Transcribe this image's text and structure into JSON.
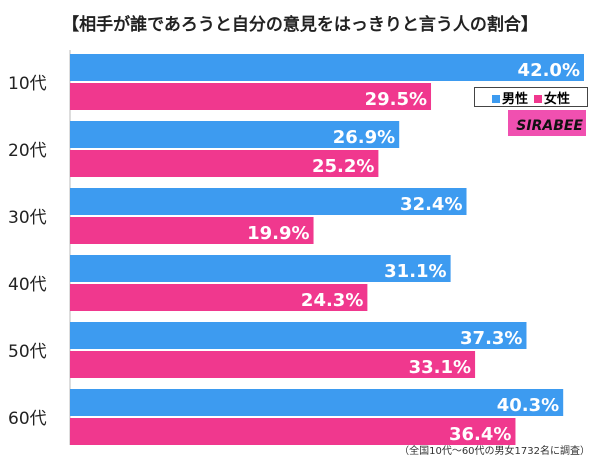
{
  "chart_data": {
    "type": "bar",
    "orientation": "horizontal",
    "title": "【相手が誰であろうと自分の意見をはっきりと言う人の割合】",
    "categories": [
      "10代",
      "20代",
      "30代",
      "40代",
      "50代",
      "60代"
    ],
    "series": [
      {
        "name": "男性",
        "color": "#3d9bf0",
        "values": [
          42.0,
          26.9,
          32.4,
          31.1,
          37.3,
          40.3
        ]
      },
      {
        "name": "女性",
        "color": "#f0388e",
        "values": [
          29.5,
          25.2,
          19.9,
          24.3,
          33.1,
          36.4
        ]
      }
    ],
    "value_suffix": "%",
    "xlim": [
      0,
      42.5
    ],
    "grid": false,
    "legend_position": "top-right",
    "note": "（全国10代～60代の男女1732名に調査）",
    "logo_text": "SIRABEE"
  }
}
